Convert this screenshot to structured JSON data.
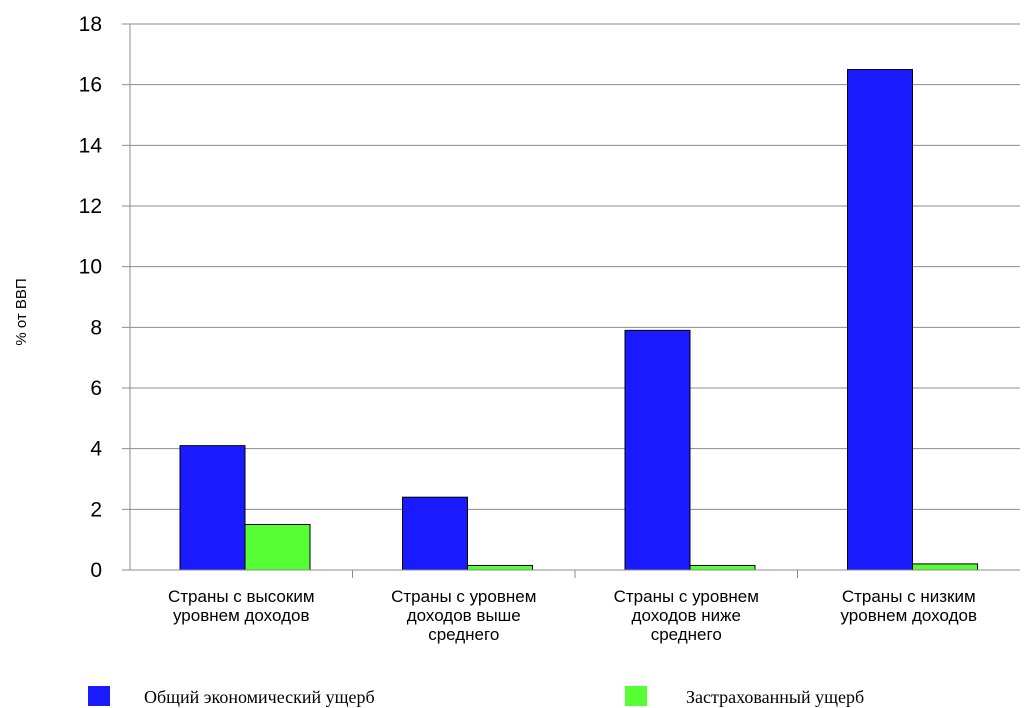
{
  "chart_data": {
    "type": "bar",
    "title": "",
    "xlabel": "",
    "ylabel": "% от ВВП",
    "ylim": [
      0,
      18
    ],
    "yticks": [
      0,
      2,
      4,
      6,
      8,
      10,
      12,
      14,
      16,
      18
    ],
    "grid": true,
    "legend_position": "bottom",
    "categories": [
      [
        "Страны с высоким",
        "уровнем доходов"
      ],
      [
        "Страны с уровнем",
        "доходов выше",
        "среднего"
      ],
      [
        "Страны с уровнем",
        "доходов ниже",
        "среднего"
      ],
      [
        "Страны с низким",
        "уровнем доходов"
      ]
    ],
    "series": [
      {
        "name": "Общий экономический ущерб",
        "color": "#1a1aff",
        "values": [
          4.1,
          2.4,
          7.9,
          16.5
        ]
      },
      {
        "name": "Застрахованный ущерб",
        "color": "#55ff33",
        "values": [
          1.5,
          0.15,
          0.15,
          0.2
        ]
      }
    ]
  }
}
